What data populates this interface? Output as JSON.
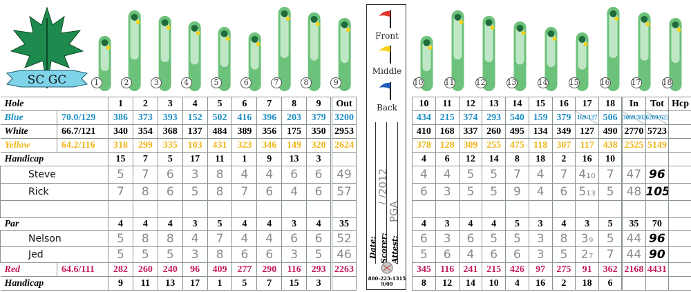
{
  "logo": {
    "text": "SCGC"
  },
  "front_holes_labels": [
    "1",
    "2",
    "3",
    "4",
    "5",
    "6",
    "7",
    "8",
    "9"
  ],
  "back_holes_labels": [
    "10",
    "11",
    "12",
    "13",
    "14",
    "15",
    "16",
    "17",
    "18"
  ],
  "colors": {
    "blue": "#1e8fc4",
    "yellow": "#f0b61a",
    "red": "#c41b5f",
    "fairway": "#6cc27a",
    "rough": "#1f6b3a"
  },
  "front": {
    "rows": [
      {
        "type": "head",
        "label": "Hole",
        "rating": "",
        "cells": [
          "1",
          "2",
          "3",
          "4",
          "5",
          "6",
          "7",
          "8",
          "9",
          "Out"
        ]
      },
      {
        "type": "blue",
        "label": "Blue",
        "rating": "70.0/129",
        "cells": [
          "386",
          "373",
          "393",
          "152",
          "502",
          "416",
          "396",
          "203",
          "379",
          "3200"
        ]
      },
      {
        "type": "white",
        "label": "White",
        "rating": "66.7/121",
        "cells": [
          "340",
          "354",
          "368",
          "137",
          "484",
          "389",
          "356",
          "175",
          "350",
          "2953"
        ]
      },
      {
        "type": "yellow",
        "label": "Yellow",
        "rating": "64.2/116",
        "cells": [
          "318",
          "299",
          "335",
          "103",
          "431",
          "323",
          "346",
          "149",
          "320",
          "2624"
        ]
      },
      {
        "type": "head",
        "label": "Handicap",
        "rating": "",
        "cells": [
          "15",
          "7",
          "5",
          "17",
          "11",
          "1",
          "9",
          "13",
          "3",
          ""
        ]
      },
      {
        "type": "hand",
        "label": "Steve",
        "cells": [
          "5",
          "7",
          "6",
          "3",
          "8",
          "4",
          "4",
          "6",
          "6",
          "49"
        ]
      },
      {
        "type": "hand",
        "label": "Rick",
        "cells": [
          "7",
          "8",
          "6",
          "5",
          "8",
          "7",
          "6",
          "4",
          "6",
          "57"
        ]
      },
      {
        "type": "hand",
        "label": "",
        "cells": [
          "",
          "",
          "",
          "",
          "",
          "",
          "",
          "",
          "",
          ""
        ]
      },
      {
        "type": "head",
        "label": "Par",
        "rating": "",
        "cells": [
          "4",
          "4",
          "4",
          "3",
          "5",
          "4",
          "4",
          "3",
          "4",
          "35"
        ]
      },
      {
        "type": "hand",
        "label": "Nelson",
        "cells": [
          "5",
          "8",
          "8",
          "4",
          "7",
          "4",
          "4",
          "6",
          "6",
          "52"
        ]
      },
      {
        "type": "hand",
        "label": "Jed",
        "cells": [
          "5",
          "5",
          "5",
          "3",
          "8",
          "6",
          "6",
          "3",
          "5",
          "46"
        ]
      },
      {
        "type": "red",
        "label": "Red",
        "rating": "64.6/111",
        "cells": [
          "282",
          "260",
          "240",
          "96",
          "409",
          "277",
          "290",
          "116",
          "293",
          "2263"
        ]
      },
      {
        "type": "head",
        "label": "Handicap",
        "rating": "",
        "cells": [
          "9",
          "11",
          "13",
          "17",
          "1",
          "5",
          "7",
          "15",
          "3",
          ""
        ]
      }
    ]
  },
  "back": {
    "rows": [
      {
        "type": "head",
        "cells": [
          "10",
          "11",
          "12",
          "13",
          "14",
          "15",
          "16",
          "17",
          "18",
          "In",
          "Tot",
          "Hcp"
        ]
      },
      {
        "type": "blue",
        "cells": [
          "434",
          "215",
          "374",
          "293",
          "540",
          "159",
          "379",
          "169/127",
          "506",
          "3069/3027",
          "6269/6227",
          ""
        ]
      },
      {
        "type": "white",
        "cells": [
          "410",
          "168",
          "337",
          "260",
          "495",
          "134",
          "349",
          "127",
          "490",
          "2770",
          "5723",
          ""
        ]
      },
      {
        "type": "yellow",
        "cells": [
          "378",
          "128",
          "309",
          "255",
          "475",
          "118",
          "307",
          "117",
          "438",
          "2525",
          "5149",
          ""
        ]
      },
      {
        "type": "head",
        "cells": [
          "4",
          "6",
          "12",
          "14",
          "8",
          "18",
          "2",
          "16",
          "10",
          "",
          "",
          ""
        ]
      },
      {
        "type": "hand",
        "cells": [
          "4",
          "4",
          "5",
          "5",
          "7",
          "4",
          "7",
          "4₁₀",
          "7",
          "47",
          "96",
          ""
        ]
      },
      {
        "type": "hand",
        "cells": [
          "6",
          "3",
          "5",
          "5",
          "9",
          "4",
          "6",
          "5₁₃",
          "5",
          "48",
          "105",
          ""
        ]
      },
      {
        "type": "hand",
        "cells": [
          "",
          "",
          "",
          "",
          "",
          "",
          "",
          "",
          "",
          "",
          "",
          ""
        ]
      },
      {
        "type": "head",
        "cells": [
          "4",
          "3",
          "4",
          "4",
          "5",
          "3",
          "4",
          "3",
          "5",
          "35",
          "70",
          ""
        ]
      },
      {
        "type": "hand",
        "cells": [
          "6",
          "3",
          "6",
          "5",
          "5",
          "3",
          "8",
          "3₉",
          "5",
          "44",
          "96",
          ""
        ]
      },
      {
        "type": "hand",
        "cells": [
          "5",
          "6",
          "4",
          "6",
          "6",
          "3",
          "5",
          "2₇",
          "7",
          "44",
          "90",
          ""
        ]
      },
      {
        "type": "red",
        "cells": [
          "345",
          "116",
          "241",
          "215",
          "426",
          "97",
          "275",
          "91",
          "362",
          "2168",
          "4431",
          ""
        ]
      },
      {
        "type": "head",
        "cells": [
          "8",
          "12",
          "14",
          "10",
          "4",
          "16",
          "2",
          "18",
          "6",
          "",
          "",
          ""
        ]
      }
    ]
  },
  "tees": {
    "front": "Front",
    "middle": "Middle",
    "back": "Back"
  },
  "signature": {
    "date_label": "Date:",
    "date_value": "/ /2012",
    "scorer_label": "Scorer:",
    "scorer_value": "PGA",
    "attest_label": "Attest:",
    "phone": "800-223-1315",
    "code": "9/09"
  }
}
